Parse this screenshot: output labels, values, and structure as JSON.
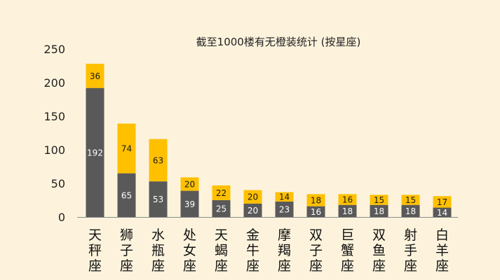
{
  "chart_data": {
    "type": "bar",
    "stacked": true,
    "title": "截至1000楼有无橙装统计 (按星座)",
    "xlabel": "",
    "ylabel": "",
    "ylim": [
      0,
      250
    ],
    "yticks": [
      0,
      50,
      100,
      150,
      200,
      250
    ],
    "grid": false,
    "legend": "none",
    "categories": [
      "天秤座",
      "狮子座",
      "水瓶座",
      "处女座",
      "天蝎座",
      "金牛座",
      "摩羯座",
      "双子座",
      "巨蟹座",
      "双鱼座",
      "射手座",
      "白羊座"
    ],
    "series": [
      {
        "values": [
          192,
          65,
          53,
          39,
          25,
          20,
          23,
          16,
          18,
          18,
          18,
          14
        ],
        "color": "#595959",
        "label_color": "#ffffff"
      },
      {
        "values": [
          36,
          74,
          63,
          20,
          22,
          20,
          14,
          18,
          16,
          15,
          15,
          17
        ],
        "color": "#ffc000",
        "label_color": "#1a1a1a"
      }
    ]
  }
}
